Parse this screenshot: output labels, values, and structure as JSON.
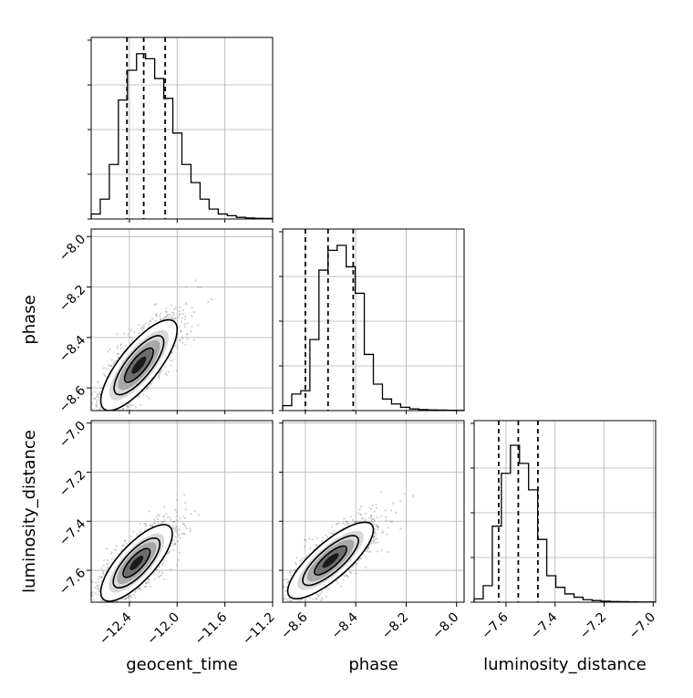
{
  "chart_data": {
    "type": "corner",
    "parameters": [
      {
        "name": "geocent_time",
        "label": "geocent_time",
        "range": [
          -12.72,
          -11.2
        ],
        "ticks": [
          -12.4,
          -12.0,
          -11.6,
          -11.2
        ],
        "tick_labels": [
          "−12.4",
          "−12.0",
          "−11.6",
          "−11.2"
        ],
        "quantiles": [
          -12.42,
          -12.28,
          -12.1
        ],
        "hist_counts": [
          0.03,
          0.12,
          0.33,
          0.72,
          0.9,
          1.0,
          0.97,
          0.85,
          0.73,
          0.52,
          0.33,
          0.22,
          0.12,
          0.06,
          0.03,
          0.02,
          0.01,
          0.006,
          0.004,
          0.003
        ]
      },
      {
        "name": "phase",
        "label": "phase",
        "range": [
          -8.69,
          -7.97
        ],
        "ticks": [
          -8.6,
          -8.4,
          -8.2,
          -8.0
        ],
        "tick_labels": [
          "−8.6",
          "−8.4",
          "−8.2",
          "−8.0"
        ],
        "quantiles": [
          -8.6,
          -8.51,
          -8.41
        ],
        "hist_counts": [
          0.03,
          0.1,
          0.12,
          0.43,
          0.85,
          0.97,
          1.0,
          0.87,
          0.71,
          0.34,
          0.16,
          0.07,
          0.04,
          0.02,
          0.01,
          0.006,
          0.004,
          0.003,
          0.002,
          0.001
        ]
      },
      {
        "name": "luminosity_distance",
        "label": "luminosity_distance",
        "range": [
          -7.73,
          -6.99
        ],
        "ticks": [
          -7.6,
          -7.4,
          -7.2,
          -7.0
        ],
        "tick_labels": [
          "−7.6",
          "−7.4",
          "−7.2",
          "−7.0"
        ],
        "quantiles": [
          -7.63,
          -7.55,
          -7.47
        ],
        "hist_counts": [
          0.02,
          0.1,
          0.46,
          0.78,
          0.95,
          0.84,
          0.68,
          0.38,
          0.16,
          0.09,
          0.05,
          0.03,
          0.015,
          0.01,
          0.006,
          0.004,
          0.003,
          0.002,
          0.001,
          0.001
        ]
      }
    ],
    "pairs": [
      {
        "x": "geocent_time",
        "y": "phase",
        "mean": [
          -12.32,
          -8.51
        ],
        "sd": [
          0.16,
          0.09
        ],
        "rho": 0.78
      },
      {
        "x": "geocent_time",
        "y": "luminosity_distance",
        "mean": [
          -12.34,
          -7.57
        ],
        "sd": [
          0.15,
          0.078
        ],
        "rho": 0.76
      },
      {
        "x": "phase",
        "y": "luminosity_distance",
        "mean": [
          -8.5,
          -7.56
        ],
        "sd": [
          0.085,
          0.078
        ],
        "rho": 0.8
      }
    ],
    "grid": true,
    "y_axis_labels": [
      "phase",
      "luminosity_distance"
    ],
    "x_axis_labels": [
      "geocent_time",
      "phase",
      "luminosity_distance"
    ],
    "colors": {
      "line": "#000000",
      "points": "#7f7f7f",
      "grid": "#b0b0b0"
    }
  }
}
